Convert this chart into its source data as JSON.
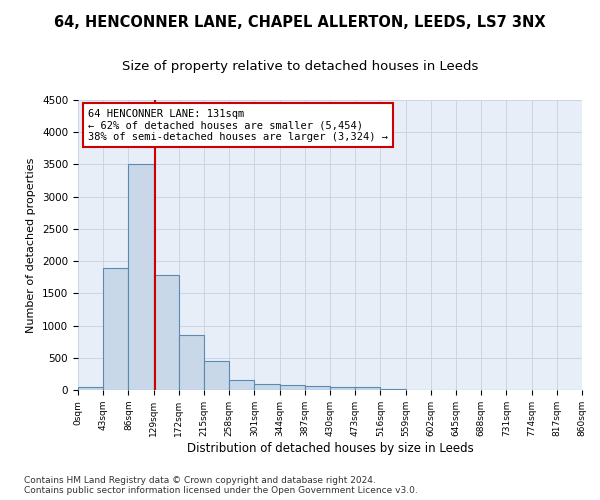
{
  "title": "64, HENCONNER LANE, CHAPEL ALLERTON, LEEDS, LS7 3NX",
  "subtitle": "Size of property relative to detached houses in Leeds",
  "xlabel": "Distribution of detached houses by size in Leeds",
  "ylabel": "Number of detached properties",
  "footnote": "Contains HM Land Registry data © Crown copyright and database right 2024.\nContains public sector information licensed under the Open Government Licence v3.0.",
  "bin_edges": [
    0,
    43,
    86,
    129,
    172,
    215,
    258,
    301,
    344,
    387,
    430,
    473,
    516,
    559,
    602,
    645,
    688,
    731,
    774,
    817,
    860
  ],
  "bar_heights": [
    50,
    1900,
    3500,
    1780,
    850,
    450,
    160,
    100,
    70,
    60,
    50,
    40,
    10,
    5,
    3,
    2,
    2,
    1,
    1,
    1
  ],
  "bar_color": "#c8d8e8",
  "bar_edge_color": "#5a8ab0",
  "bar_edge_width": 0.8,
  "property_size": 131,
  "property_line_color": "#cc0000",
  "annotation_line1": "64 HENCONNER LANE: 131sqm",
  "annotation_line2": "← 62% of detached houses are smaller (5,454)",
  "annotation_line3": "38% of semi-detached houses are larger (3,324) →",
  "annotation_box_color": "#cc0000",
  "ylim": [
    0,
    4500
  ],
  "yticks": [
    0,
    500,
    1000,
    1500,
    2000,
    2500,
    3000,
    3500,
    4000,
    4500
  ],
  "grid_color": "#c8d0e0",
  "background_color": "#e8eef8",
  "title_fontsize": 10.5,
  "subtitle_fontsize": 9.5,
  "footnote_fontsize": 6.5
}
